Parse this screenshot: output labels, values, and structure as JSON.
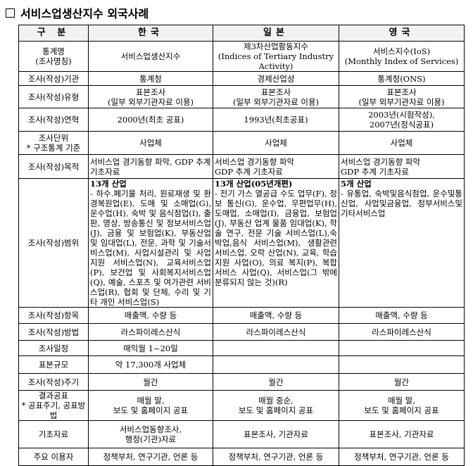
{
  "title": "서비스업생산지수 외국사례",
  "header": [
    "구 분",
    "한국",
    "일본",
    "영국"
  ],
  "rows": [
    {
      "label": "통계명\n(조사명칭)",
      "kr": "서비스업생산지수",
      "jp": "제3차산업활동지수\n(Indices of Tertiary Industry Activity)",
      "uk": "서비스지수(IoS)\n(Monthly Index of Services)"
    },
    {
      "label": "조사(작성)기관",
      "kr": "통계청",
      "jp": "경제산업성",
      "uk": "통계청(ONS)"
    },
    {
      "label": "조사(작성)유형",
      "kr": "표본조사\n(일부 외부기관자료 이용)",
      "jp": "표본조사\n(일부 외부기관자료 이용)",
      "uk": "표본조사\n(일부 외부기관자료 이용)"
    },
    {
      "label": "조사(작성)연혁",
      "kr": "2000년(최초 공표)",
      "jp": "1993년(최초공표)",
      "uk": "2003년(시험작성),\n2007년(정식공표)"
    },
    {
      "label": "조사단위\n* 구조통계 기준",
      "kr": "사업체",
      "jp": "사업체",
      "uk": "사업체"
    },
    {
      "label": "조사(작성)목적",
      "kr": "서비스업 경기동향 파악, GDP 추계 기초자료",
      "jp": "서비스업 경기동향 파악\nGDP 추계 기초자료",
      "uk": "서비스업 경기동향 파악\nGDP 추계 기초자료"
    },
    {
      "label": "조사(작성)범위",
      "kr_head": "13개 산업",
      "kr": " - 하수.폐기물 처리, 원료재생 및 환경복원업(E), 도매 및 소매업(G), 운수업(H), 숙박 및 음식점업(I), 출판, 영상, 방송통신 및 정보서비스업(J), 금융 및 보험업(K), 부동산업 및 임대업(L), 전문, 과학 및 기술서비스업(M), 사업시설관리 및 사업지원 서비스업(N), 교육서비스업(P), 보건업 및 사회복지서비스업(Q), 예술, 스포츠 및 여가관련 서비스업(R), 협회 및 단체, 수리 및 기타 개인 서비스업(S)",
      "jp_head": "13개 산업(05년개편)",
      "jp": " - 전기 가스 열공급 수도 업무(F), 정보 통신(G), 운수업, 우편업무(H), 도매업, 소매업(I), 금융업, 보험업(J), 부동산 업계 물품 임대업(K), 학술 연구, 전문 기술 서비스업(L),숙박업,음식 서비스업(M), 생활관련 서비스업, 오락 산업(N), 교육, 학습 지원 사업(O), 의료 복지(P), 복합 서비스 사업(Q), 서비스업(그 밖에분류되지 않는 것)(R)",
      "uk_head": "5개 산업",
      "uk": " - 유통업, 숙박및음식점업, 운수및통신업, 사업및금융업, 정부서비스및기타서비스업"
    },
    {
      "label": "조사(작성)항목",
      "kr": "매출액, 수량 등",
      "jp": "매출액, 수량 등",
      "uk": "매출액, 수량 등"
    },
    {
      "label": "조사(작성)방법",
      "kr": "라스파이레스산식",
      "jp": "라스파이레스산식",
      "uk": "라스파이레스산식"
    },
    {
      "label": "조사일정",
      "kr": "매익월 1~20일",
      "jp": "",
      "uk": ""
    },
    {
      "label": "표본규모",
      "kr": "약 17,300개 사업체",
      "jp": "",
      "uk": ""
    },
    {
      "label": "조사(작성)주기",
      "kr": "월간",
      "jp": "월간",
      "uk": "월간"
    },
    {
      "label": "결과공표\n* 공표주기, 공표방법",
      "kr": "매월 말,\n보도 및 홈페이지 공표",
      "jp": "매월 중순,\n보도 및 홈페이지 공표",
      "uk": "매월 말,\n보도 및 홈페이지 공표"
    },
    {
      "label": "기초자료",
      "kr": "서비스업동향조사,\n행정(기관)자료",
      "jp": "표본조사, 기관자료",
      "uk": "표본조사, 기관자료"
    },
    {
      "label": "주요 이용자",
      "kr": "정책부처, 연구기관, 언론 등",
      "jp": "정책부처, 연구기관, 언론 등",
      "uk": "정책부처, 연구기관, 언론 등"
    }
  ]
}
